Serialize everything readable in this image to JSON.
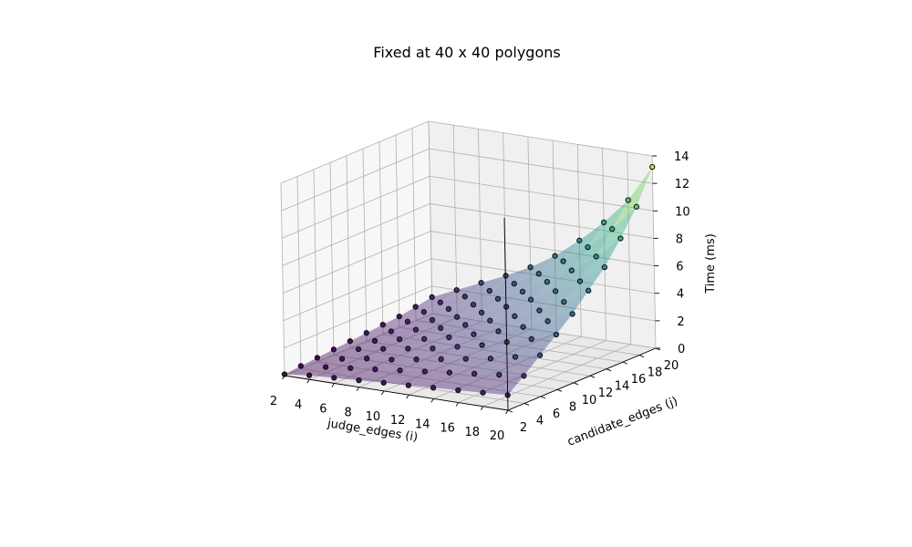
{
  "chart_data": {
    "type": "scatter",
    "title": "Fixed at 40 x 40 polygons",
    "xlabel": "judge_edges (i)",
    "ylabel": "candidate_edges (j)",
    "zlabel": "Time (ms)",
    "x_ticks": [
      "2",
      "4",
      "6",
      "8",
      "10",
      "12",
      "14",
      "16",
      "18",
      "20"
    ],
    "y_ticks": [
      "2",
      "4",
      "6",
      "8",
      "10",
      "12",
      "14",
      "16",
      "18",
      "20"
    ],
    "z_ticks": [
      "0",
      "2",
      "4",
      "6",
      "8",
      "10",
      "12",
      "14"
    ],
    "xlim": [
      2,
      20
    ],
    "ylim": [
      2,
      20
    ],
    "zlim": [
      0,
      14
    ],
    "colormap": "viridis",
    "grid": true,
    "x": [
      2,
      4,
      6,
      8,
      10,
      12,
      14,
      16,
      18,
      20
    ],
    "y": [
      2,
      4,
      6,
      8,
      10,
      12,
      14,
      16,
      18,
      20
    ],
    "z": [
      [
        0.1,
        0.2,
        0.3,
        0.4,
        0.5,
        0.6,
        0.7,
        0.8,
        1.0,
        1.2
      ],
      [
        0.3,
        0.4,
        0.5,
        0.7,
        0.8,
        1.0,
        1.2,
        1.4,
        1.6,
        2.0
      ],
      [
        0.4,
        0.6,
        0.8,
        1.0,
        1.2,
        1.4,
        1.6,
        1.9,
        2.3,
        2.8
      ],
      [
        0.5,
        0.8,
        1.0,
        1.3,
        1.5,
        1.8,
        2.1,
        2.5,
        3.0,
        3.6
      ],
      [
        0.6,
        1.0,
        1.3,
        1.6,
        1.9,
        2.3,
        2.7,
        3.2,
        3.8,
        4.5
      ],
      [
        0.7,
        1.2,
        1.6,
        2.0,
        2.4,
        2.9,
        3.4,
        4.0,
        4.8,
        5.6
      ],
      [
        0.8,
        1.4,
        1.9,
        2.4,
        2.9,
        3.5,
        4.2,
        5.0,
        6.0,
        7.0
      ],
      [
        0.9,
        1.6,
        2.2,
        2.9,
        3.5,
        4.2,
        5.1,
        6.1,
        7.3,
        8.6
      ],
      [
        1.0,
        1.8,
        2.6,
        3.4,
        4.2,
        5.1,
        6.1,
        7.4,
        8.9,
        10.5
      ],
      [
        1.1,
        2.0,
        3.0,
        4.0,
        5.0,
        6.2,
        7.4,
        9.0,
        10.8,
        13.2
      ]
    ]
  }
}
